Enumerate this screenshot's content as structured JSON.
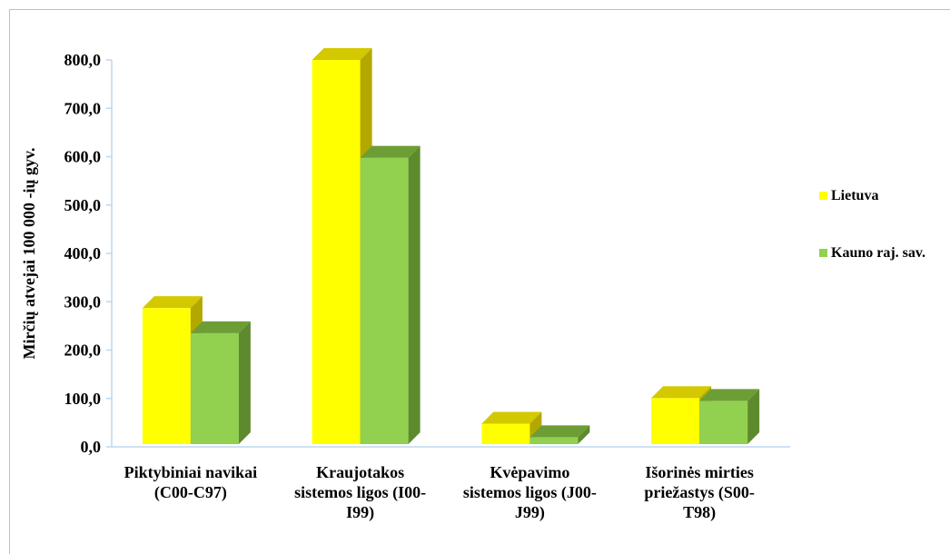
{
  "chart_data": {
    "type": "bar",
    "ylabel": "Mirčių atvejai 100 000 -ių gyv.",
    "ylim": [
      0,
      800
    ],
    "yticks": [
      "0,0",
      "100,0",
      "200,0",
      "300,0",
      "400,0",
      "500,0",
      "600,0",
      "700,0",
      "800,0"
    ],
    "categories": [
      [
        "Piktybiniai navikai",
        "(C00-C97)"
      ],
      [
        "Kraujotakos",
        "sistemos ligos (I00-",
        "I99)"
      ],
      [
        "Kvėpavimo",
        "sistemos ligos (J00-",
        "J99)"
      ],
      [
        "Išorinės mirties",
        "priežastys (S00-",
        "T98)"
      ]
    ],
    "series": [
      {
        "name": "Lietuva",
        "values": [
          287,
          800,
          48,
          101
        ],
        "color": "#ffff00",
        "top": "#d4c800",
        "side": "#b3a800"
      },
      {
        "name": "Kauno raj. sav.",
        "values": [
          235,
          598,
          20,
          95
        ],
        "color": "#92d050",
        "top": "#6d9e35",
        "side": "#5e8a2e"
      }
    ],
    "legend_position": "right",
    "grid": false
  }
}
